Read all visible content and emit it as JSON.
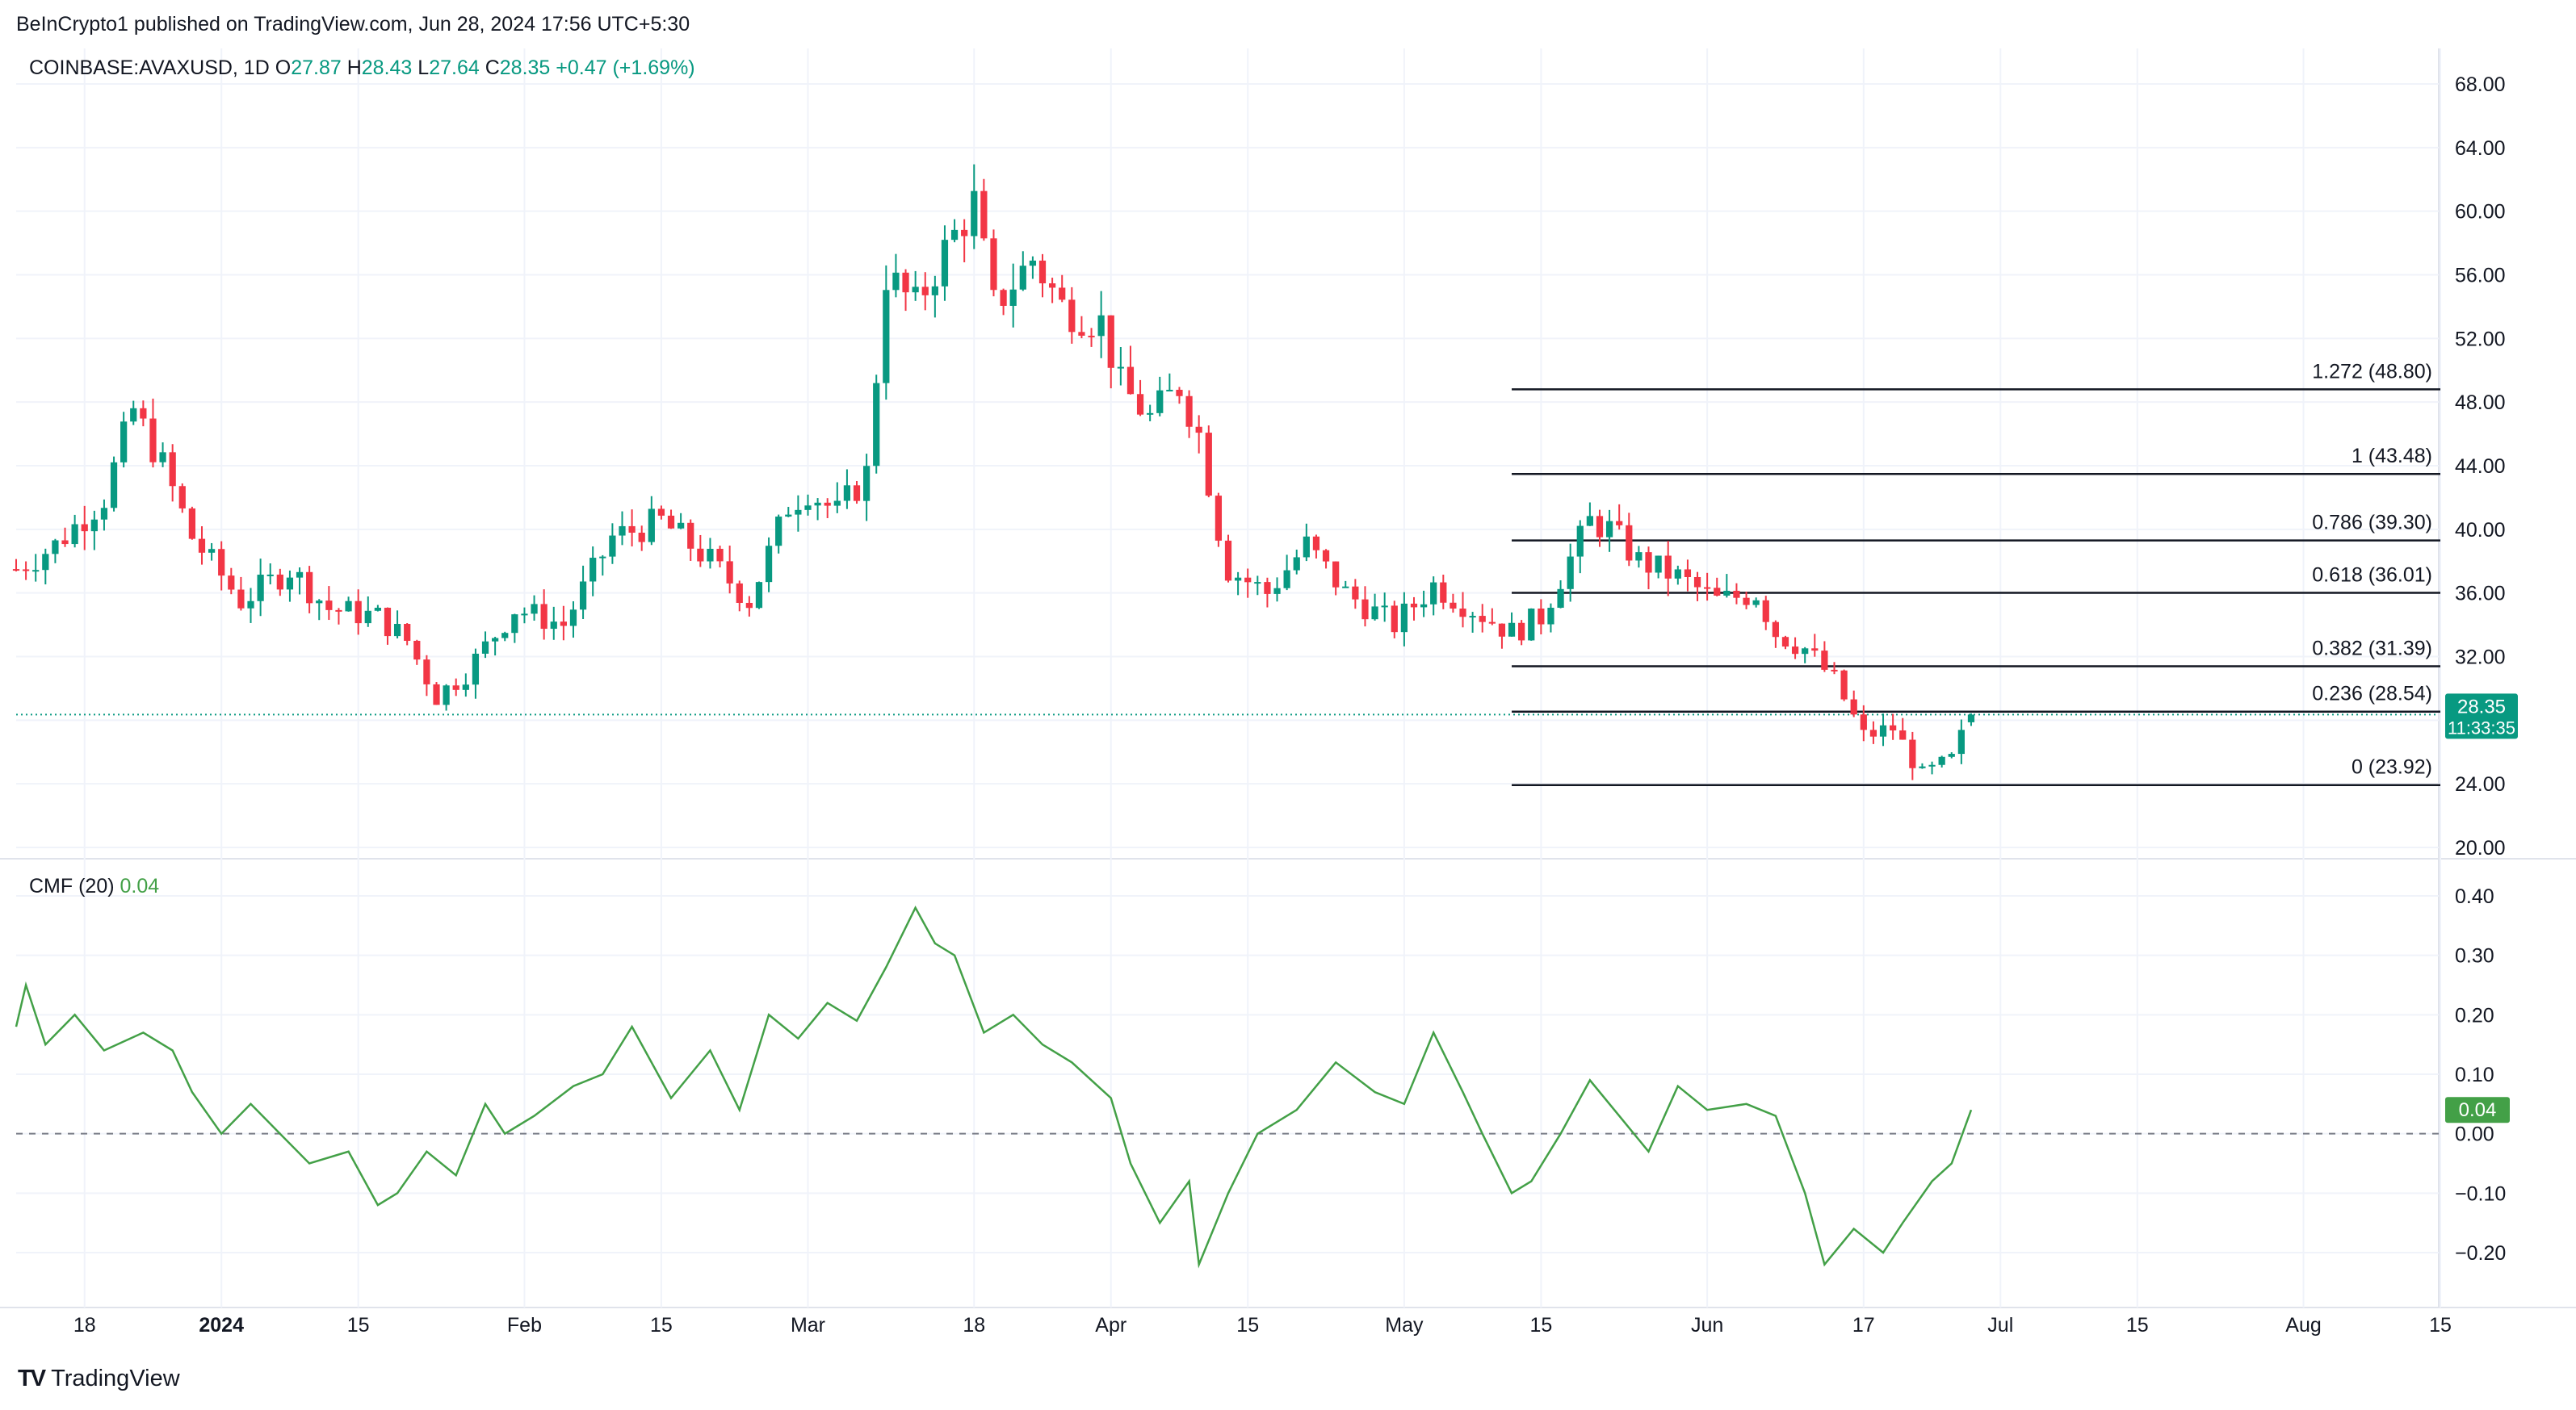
{
  "header": {
    "published_by": "BeInCrypto1 published on TradingView.com, Jun 28, 2024 17:56 UTC+5:30"
  },
  "legend": {
    "symbol": "COINBASE:AVAXUSD, 1D",
    "o_label": "O",
    "o_value": "27.87",
    "h_label": "H",
    "h_value": "28.43",
    "l_label": "L",
    "l_value": "27.64",
    "c_label": "C",
    "c_value": "28.35",
    "change": "+0.47 (+1.69%)"
  },
  "price_badge": {
    "price": "28.35",
    "countdown": "11:33:35"
  },
  "cmf_legend": {
    "name": "CMF (20)",
    "value": "0.04"
  },
  "cmf_badge": "0.04",
  "brand": {
    "name": "TradingView",
    "logo": "TV"
  },
  "colors": {
    "up": "#089981",
    "down": "#f23645",
    "cmf_line": "#43a047",
    "fib_line": "#131722",
    "grid": "#f0f3fa",
    "last_price_line": "#089981"
  },
  "chart_data": [
    {
      "type": "candlestick",
      "symbol": "COINBASE:AVAXUSD",
      "timeframe": "1D",
      "y_axis": {
        "min": 20,
        "max": 68,
        "ticks": [
          "68.00",
          "64.00",
          "60.00",
          "56.00",
          "52.00",
          "48.00",
          "44.00",
          "40.00",
          "36.00",
          "32.00",
          "28.00",
          "24.00",
          "20.00"
        ]
      },
      "x_axis": {
        "ticks": [
          {
            "label": "18",
            "date": "2023-12-18",
            "bold": false
          },
          {
            "label": "2024",
            "date": "2024-01-01",
            "bold": true
          },
          {
            "label": "15",
            "date": "2024-01-15",
            "bold": false
          },
          {
            "label": "Feb",
            "date": "2024-02-01",
            "bold": false
          },
          {
            "label": "15",
            "date": "2024-02-15",
            "bold": false
          },
          {
            "label": "Mar",
            "date": "2024-03-01",
            "bold": false
          },
          {
            "label": "18",
            "date": "2024-03-18",
            "bold": false
          },
          {
            "label": "Apr",
            "date": "2024-04-01",
            "bold": false
          },
          {
            "label": "15",
            "date": "2024-04-15",
            "bold": false
          },
          {
            "label": "May",
            "date": "2024-05-01",
            "bold": false
          },
          {
            "label": "15",
            "date": "2024-05-15",
            "bold": false
          },
          {
            "label": "Jun",
            "date": "2024-06-01",
            "bold": false
          },
          {
            "label": "17",
            "date": "2024-06-17",
            "bold": false
          },
          {
            "label": "Jul",
            "date": "2024-07-01",
            "bold": false
          },
          {
            "label": "15",
            "date": "2024-07-15",
            "bold": false
          },
          {
            "label": "Aug",
            "date": "2024-08-01",
            "bold": false
          },
          {
            "label": "15",
            "date": "2024-08-15",
            "bold": false
          }
        ]
      },
      "date_range": [
        "2023-12-11",
        "2024-08-15"
      ],
      "last_price": 28.35,
      "closes": [
        {
          "date": "2023-12-11",
          "close": 37.5
        },
        {
          "date": "2023-12-15",
          "close": 39.0
        },
        {
          "date": "2023-12-20",
          "close": 42.0
        },
        {
          "date": "2023-12-23",
          "close": 47.5
        },
        {
          "date": "2023-12-26",
          "close": 44.0
        },
        {
          "date": "2023-12-29",
          "close": 39.5
        },
        {
          "date": "2024-01-03",
          "close": 35.5
        },
        {
          "date": "2024-01-08",
          "close": 37.5
        },
        {
          "date": "2024-01-12",
          "close": 35.0
        },
        {
          "date": "2024-01-17",
          "close": 34.5
        },
        {
          "date": "2024-01-20",
          "close": 33.0
        },
        {
          "date": "2024-01-23",
          "close": 29.5
        },
        {
          "date": "2024-01-26",
          "close": 31.0
        },
        {
          "date": "2024-01-31",
          "close": 35.0
        },
        {
          "date": "2024-02-05",
          "close": 34.0
        },
        {
          "date": "2024-02-10",
          "close": 39.5
        },
        {
          "date": "2024-02-15",
          "close": 40.5
        },
        {
          "date": "2024-02-20",
          "close": 38.0
        },
        {
          "date": "2024-02-24",
          "close": 35.5
        },
        {
          "date": "2024-02-28",
          "close": 41.5
        },
        {
          "date": "2024-03-01",
          "close": 42.5
        },
        {
          "date": "2024-03-04",
          "close": 41.0
        },
        {
          "date": "2024-03-07",
          "close": 43.5
        },
        {
          "date": "2024-03-09",
          "close": 56.0
        },
        {
          "date": "2024-03-12",
          "close": 54.0
        },
        {
          "date": "2024-03-15",
          "close": 57.5
        },
        {
          "date": "2024-03-18",
          "close": 60.5
        },
        {
          "date": "2024-03-20",
          "close": 54.0
        },
        {
          "date": "2024-03-24",
          "close": 57.0
        },
        {
          "date": "2024-03-27",
          "close": 54.0
        },
        {
          "date": "2024-03-31",
          "close": 53.0
        },
        {
          "date": "2024-04-02",
          "close": 49.0
        },
        {
          "date": "2024-04-05",
          "close": 47.0
        },
        {
          "date": "2024-04-08",
          "close": 49.0
        },
        {
          "date": "2024-04-10",
          "close": 46.0
        },
        {
          "date": "2024-04-12",
          "close": 40.0
        },
        {
          "date": "2024-04-13",
          "close": 37.5
        },
        {
          "date": "2024-04-17",
          "close": 36.0
        },
        {
          "date": "2024-04-21",
          "close": 39.0
        },
        {
          "date": "2024-04-25",
          "close": 36.0
        },
        {
          "date": "2024-04-30",
          "close": 34.0
        },
        {
          "date": "2024-05-04",
          "close": 36.5
        },
        {
          "date": "2024-05-08",
          "close": 35.0
        },
        {
          "date": "2024-05-12",
          "close": 33.5
        },
        {
          "date": "2024-05-15",
          "close": 34.5
        },
        {
          "date": "2024-05-17",
          "close": 37.0
        },
        {
          "date": "2024-05-20",
          "close": 40.5
        },
        {
          "date": "2024-05-22",
          "close": 40.0
        },
        {
          "date": "2024-05-25",
          "close": 38.0
        },
        {
          "date": "2024-05-29",
          "close": 37.0
        },
        {
          "date": "2024-06-02",
          "close": 35.5
        },
        {
          "date": "2024-06-06",
          "close": 36.0
        },
        {
          "date": "2024-06-08",
          "close": 33.5
        },
        {
          "date": "2024-06-11",
          "close": 32.5
        },
        {
          "date": "2024-06-14",
          "close": 30.5
        },
        {
          "date": "2024-06-17",
          "close": 27.0
        },
        {
          "date": "2024-06-20",
          "close": 27.5
        },
        {
          "date": "2024-06-23",
          "close": 24.5
        },
        {
          "date": "2024-06-26",
          "close": 25.5
        },
        {
          "date": "2024-06-28",
          "close": 28.35
        }
      ],
      "fibonacci": {
        "start_date": "2024-05-12",
        "end_date": "2024-08-15",
        "levels": [
          {
            "label": "1.272 (48.80)",
            "price": 48.8
          },
          {
            "label": "1 (43.48)",
            "price": 43.48
          },
          {
            "label": "0.786 (39.30)",
            "price": 39.3
          },
          {
            "label": "0.618 (36.01)",
            "price": 36.01
          },
          {
            "label": "0.382 (31.39)",
            "price": 31.39
          },
          {
            "label": "0.236 (28.54)",
            "price": 28.54
          },
          {
            "label": "0 (23.92)",
            "price": 23.92
          }
        ]
      }
    },
    {
      "type": "line",
      "name": "CMF (20)",
      "y_axis": {
        "min": -0.25,
        "max": 0.45,
        "ticks": [
          "0.40",
          "0.30",
          "0.20",
          "0.10",
          "0.00",
          "−0.10",
          "−0.20"
        ]
      },
      "zero_line": 0,
      "points": [
        {
          "date": "2023-12-11",
          "value": 0.18
        },
        {
          "date": "2023-12-12",
          "value": 0.25
        },
        {
          "date": "2023-12-14",
          "value": 0.15
        },
        {
          "date": "2023-12-17",
          "value": 0.2
        },
        {
          "date": "2023-12-20",
          "value": 0.14
        },
        {
          "date": "2023-12-24",
          "value": 0.17
        },
        {
          "date": "2023-12-27",
          "value": 0.14
        },
        {
          "date": "2023-12-29",
          "value": 0.07
        },
        {
          "date": "2024-01-01",
          "value": 0.0
        },
        {
          "date": "2024-01-04",
          "value": 0.05
        },
        {
          "date": "2024-01-07",
          "value": 0.0
        },
        {
          "date": "2024-01-10",
          "value": -0.05
        },
        {
          "date": "2024-01-14",
          "value": -0.03
        },
        {
          "date": "2024-01-17",
          "value": -0.12
        },
        {
          "date": "2024-01-19",
          "value": -0.1
        },
        {
          "date": "2024-01-22",
          "value": -0.03
        },
        {
          "date": "2024-01-25",
          "value": -0.07
        },
        {
          "date": "2024-01-28",
          "value": 0.05
        },
        {
          "date": "2024-01-30",
          "value": 0.0
        },
        {
          "date": "2024-02-02",
          "value": 0.03
        },
        {
          "date": "2024-02-06",
          "value": 0.08
        },
        {
          "date": "2024-02-09",
          "value": 0.1
        },
        {
          "date": "2024-02-12",
          "value": 0.18
        },
        {
          "date": "2024-02-16",
          "value": 0.06
        },
        {
          "date": "2024-02-20",
          "value": 0.14
        },
        {
          "date": "2024-02-23",
          "value": 0.04
        },
        {
          "date": "2024-02-26",
          "value": 0.2
        },
        {
          "date": "2024-02-29",
          "value": 0.16
        },
        {
          "date": "2024-03-03",
          "value": 0.22
        },
        {
          "date": "2024-03-06",
          "value": 0.19
        },
        {
          "date": "2024-03-09",
          "value": 0.28
        },
        {
          "date": "2024-03-12",
          "value": 0.38
        },
        {
          "date": "2024-03-14",
          "value": 0.32
        },
        {
          "date": "2024-03-16",
          "value": 0.3
        },
        {
          "date": "2024-03-19",
          "value": 0.17
        },
        {
          "date": "2024-03-22",
          "value": 0.2
        },
        {
          "date": "2024-03-25",
          "value": 0.15
        },
        {
          "date": "2024-03-28",
          "value": 0.12
        },
        {
          "date": "2024-04-01",
          "value": 0.06
        },
        {
          "date": "2024-04-03",
          "value": -0.05
        },
        {
          "date": "2024-04-06",
          "value": -0.15
        },
        {
          "date": "2024-04-09",
          "value": -0.08
        },
        {
          "date": "2024-04-10",
          "value": -0.22
        },
        {
          "date": "2024-04-13",
          "value": -0.1
        },
        {
          "date": "2024-04-16",
          "value": 0.0
        },
        {
          "date": "2024-04-20",
          "value": 0.04
        },
        {
          "date": "2024-04-24",
          "value": 0.12
        },
        {
          "date": "2024-04-28",
          "value": 0.07
        },
        {
          "date": "2024-05-01",
          "value": 0.05
        },
        {
          "date": "2024-05-04",
          "value": 0.17
        },
        {
          "date": "2024-05-07",
          "value": 0.07
        },
        {
          "date": "2024-05-09",
          "value": 0.0
        },
        {
          "date": "2024-05-12",
          "value": -0.1
        },
        {
          "date": "2024-05-14",
          "value": -0.08
        },
        {
          "date": "2024-05-17",
          "value": 0.0
        },
        {
          "date": "2024-05-20",
          "value": 0.09
        },
        {
          "date": "2024-05-23",
          "value": 0.03
        },
        {
          "date": "2024-05-26",
          "value": -0.03
        },
        {
          "date": "2024-05-29",
          "value": 0.08
        },
        {
          "date": "2024-06-01",
          "value": 0.04
        },
        {
          "date": "2024-06-05",
          "value": 0.05
        },
        {
          "date": "2024-06-08",
          "value": 0.03
        },
        {
          "date": "2024-06-11",
          "value": -0.1
        },
        {
          "date": "2024-06-13",
          "value": -0.22
        },
        {
          "date": "2024-06-16",
          "value": -0.16
        },
        {
          "date": "2024-06-19",
          "value": -0.2
        },
        {
          "date": "2024-06-21",
          "value": -0.15
        },
        {
          "date": "2024-06-24",
          "value": -0.08
        },
        {
          "date": "2024-06-26",
          "value": -0.05
        },
        {
          "date": "2024-06-28",
          "value": 0.04
        }
      ]
    }
  ]
}
